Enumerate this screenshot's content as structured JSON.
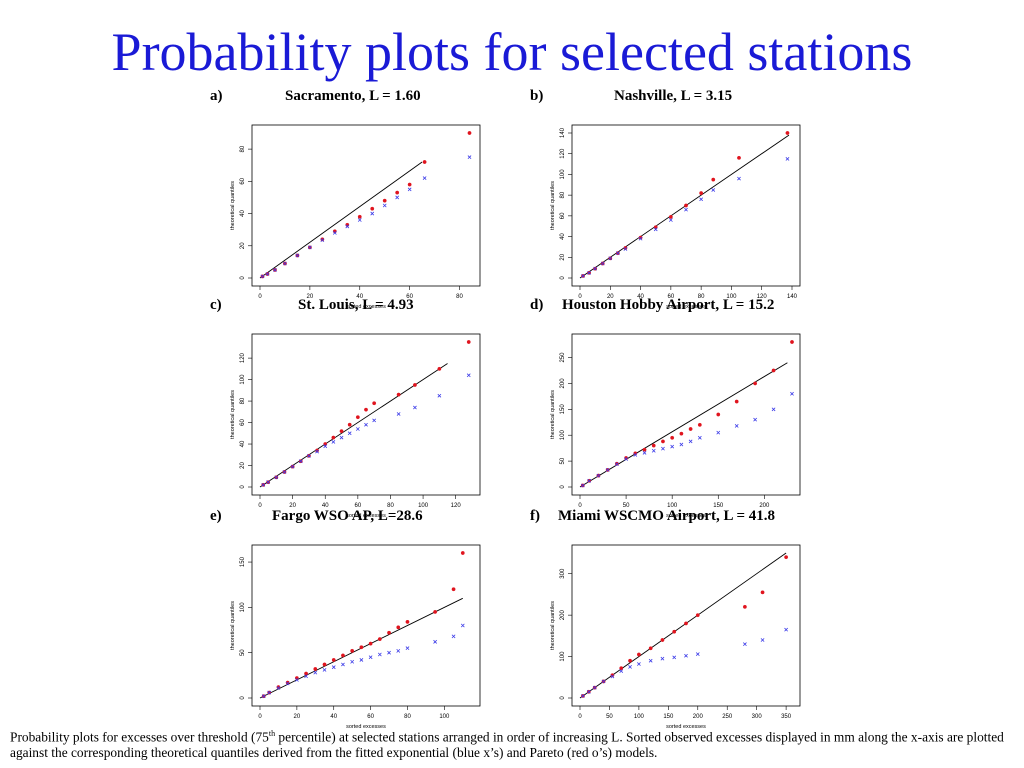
{
  "slide": {
    "title": "Probability plots for selected stations",
    "caption": {
      "part1": "Probability plots for excesses over threshold (75",
      "sup": "th",
      "part2": " percentile) at selected stations arranged in order of increasing L. Sorted observed excesses displayed in mm along the x-axis are plotted against the corresponding theoretical quantiles derived from the fitted exponential (blue x’s) and Pareto (red o’s) models."
    }
  },
  "colors": {
    "title": "#1a1ad6",
    "pareto": "#e0141e",
    "exponential": "#3a3ae8",
    "line": "#000000"
  },
  "chart_data": [
    {
      "letter": "a)",
      "title": "Sacramento, L = 1.60",
      "type": "scatter",
      "xlabel": "sorted excesses",
      "ylabel": "theoretical quantiles",
      "xlim": [
        0,
        85
      ],
      "ylim": [
        0,
        90
      ],
      "xticks": [
        0,
        20,
        40,
        60,
        80
      ],
      "yticks": [
        0,
        20,
        40,
        60,
        80
      ],
      "line_end": [
        65,
        72
      ],
      "series": [
        {
          "name": "Pareto",
          "marker": "o",
          "points": [
            [
              1,
              1
            ],
            [
              3,
              2.5
            ],
            [
              6,
              5
            ],
            [
              10,
              9
            ],
            [
              15,
              14
            ],
            [
              20,
              19
            ],
            [
              25,
              24
            ],
            [
              30,
              29
            ],
            [
              35,
              33
            ],
            [
              40,
              38
            ],
            [
              45,
              43
            ],
            [
              50,
              48
            ],
            [
              55,
              53
            ],
            [
              60,
              58
            ],
            [
              66,
              72
            ],
            [
              84,
              90
            ]
          ]
        },
        {
          "name": "Exponential",
          "marker": "x",
          "points": [
            [
              1,
              1
            ],
            [
              3,
              2.5
            ],
            [
              6,
              5
            ],
            [
              10,
              9
            ],
            [
              15,
              14
            ],
            [
              20,
              19
            ],
            [
              25,
              23.5
            ],
            [
              30,
              28
            ],
            [
              35,
              32
            ],
            [
              40,
              36
            ],
            [
              45,
              40
            ],
            [
              50,
              45
            ],
            [
              55,
              50
            ],
            [
              60,
              55
            ],
            [
              66,
              62
            ],
            [
              84,
              75
            ]
          ]
        }
      ]
    },
    {
      "letter": "b)",
      "title": "Nashville, L = 3.15",
      "type": "scatter",
      "xlabel": "sorted excesses",
      "ylabel": "theoretical quantiles",
      "xlim": [
        0,
        140
      ],
      "ylim": [
        0,
        140
      ],
      "xticks": [
        0,
        20,
        40,
        60,
        80,
        100,
        120,
        140
      ],
      "yticks": [
        0,
        20,
        40,
        60,
        80,
        100,
        120,
        140
      ],
      "line_end": [
        138,
        138
      ],
      "series": [
        {
          "name": "Pareto",
          "marker": "o",
          "points": [
            [
              2,
              2
            ],
            [
              6,
              5
            ],
            [
              10,
              9
            ],
            [
              15,
              14
            ],
            [
              20,
              19
            ],
            [
              25,
              24
            ],
            [
              30,
              29
            ],
            [
              40,
              39
            ],
            [
              50,
              49
            ],
            [
              60,
              59
            ],
            [
              70,
              70
            ],
            [
              80,
              82
            ],
            [
              88,
              95
            ],
            [
              105,
              116
            ],
            [
              137,
              140
            ]
          ]
        },
        {
          "name": "Exponential",
          "marker": "x",
          "points": [
            [
              2,
              2
            ],
            [
              6,
              5
            ],
            [
              10,
              9
            ],
            [
              15,
              14
            ],
            [
              20,
              19
            ],
            [
              25,
              24
            ],
            [
              30,
              28
            ],
            [
              40,
              38
            ],
            [
              50,
              47
            ],
            [
              60,
              56
            ],
            [
              70,
              66
            ],
            [
              80,
              76
            ],
            [
              88,
              85
            ],
            [
              105,
              96
            ],
            [
              137,
              115
            ]
          ]
        }
      ]
    },
    {
      "letter": "c)",
      "title": "St. Louis, L = 4.93",
      "type": "scatter",
      "xlabel": "sorted excesses",
      "ylabel": "theoretical quantiles",
      "xlim": [
        0,
        130
      ],
      "ylim": [
        0,
        135
      ],
      "xticks": [
        0,
        20,
        40,
        60,
        80,
        100,
        120
      ],
      "yticks": [
        0,
        20,
        40,
        60,
        80,
        100,
        120
      ],
      "line_end": [
        115,
        115
      ],
      "series": [
        {
          "name": "Pareto",
          "marker": "o",
          "points": [
            [
              2,
              2
            ],
            [
              5,
              4.5
            ],
            [
              10,
              9
            ],
            [
              15,
              14
            ],
            [
              20,
              19
            ],
            [
              25,
              24
            ],
            [
              30,
              29
            ],
            [
              35,
              34
            ],
            [
              40,
              40
            ],
            [
              45,
              46
            ],
            [
              50,
              52
            ],
            [
              55,
              58
            ],
            [
              60,
              65
            ],
            [
              65,
              72
            ],
            [
              70,
              78
            ],
            [
              85,
              86
            ],
            [
              95,
              95
            ],
            [
              110,
              110
            ],
            [
              128,
              135
            ]
          ]
        },
        {
          "name": "Exponential",
          "marker": "x",
          "points": [
            [
              2,
              2
            ],
            [
              5,
              4.5
            ],
            [
              10,
              9
            ],
            [
              15,
              14
            ],
            [
              20,
              19
            ],
            [
              25,
              24
            ],
            [
              30,
              29
            ],
            [
              35,
              33
            ],
            [
              40,
              38
            ],
            [
              45,
              42
            ],
            [
              50,
              46
            ],
            [
              55,
              50
            ],
            [
              60,
              54
            ],
            [
              65,
              58
            ],
            [
              70,
              62
            ],
            [
              85,
              68
            ],
            [
              95,
              74
            ],
            [
              110,
              85
            ],
            [
              128,
              104
            ]
          ]
        }
      ]
    },
    {
      "letter": "d)",
      "title": "Houston Hobby Airport, L = 15.2",
      "type": "scatter",
      "xlabel": "sorted excesses",
      "ylabel": "theoretical quantiles",
      "xlim": [
        0,
        230
      ],
      "ylim": [
        0,
        280
      ],
      "xticks": [
        0,
        50,
        100,
        150,
        200
      ],
      "yticks": [
        0,
        50,
        100,
        150,
        200,
        250
      ],
      "line_end": [
        225,
        240
      ],
      "series": [
        {
          "name": "Pareto",
          "marker": "o",
          "points": [
            [
              3,
              3
            ],
            [
              10,
              12
            ],
            [
              20,
              22
            ],
            [
              30,
              33
            ],
            [
              40,
              45
            ],
            [
              50,
              56
            ],
            [
              60,
              65
            ],
            [
              70,
              72
            ],
            [
              80,
              80
            ],
            [
              90,
              88
            ],
            [
              100,
              95
            ],
            [
              110,
              103
            ],
            [
              120,
              112
            ],
            [
              130,
              120
            ],
            [
              150,
              140
            ],
            [
              170,
              165
            ],
            [
              190,
              200
            ],
            [
              210,
              225
            ],
            [
              230,
              280
            ]
          ]
        },
        {
          "name": "Exponential",
          "marker": "x",
          "points": [
            [
              3,
              3
            ],
            [
              10,
              12
            ],
            [
              20,
              22
            ],
            [
              30,
              33
            ],
            [
              40,
              44
            ],
            [
              50,
              54
            ],
            [
              60,
              62
            ],
            [
              70,
              66
            ],
            [
              80,
              70
            ],
            [
              90,
              74
            ],
            [
              100,
              78
            ],
            [
              110,
              82
            ],
            [
              120,
              88
            ],
            [
              130,
              95
            ],
            [
              150,
              105
            ],
            [
              170,
              118
            ],
            [
              190,
              130
            ],
            [
              210,
              150
            ],
            [
              230,
              180
            ]
          ]
        }
      ]
    },
    {
      "letter": "e)",
      "title": "Fargo WSO AP, L=28.6",
      "type": "scatter",
      "xlabel": "sorted excesses",
      "ylabel": "theoretical quantiles",
      "xlim": [
        0,
        115
      ],
      "ylim": [
        0,
        160
      ],
      "xticks": [
        0,
        20,
        40,
        60,
        80,
        100
      ],
      "yticks": [
        0,
        50,
        100,
        150
      ],
      "line_end": [
        110,
        110
      ],
      "series": [
        {
          "name": "Pareto",
          "marker": "o",
          "points": [
            [
              2,
              2
            ],
            [
              5,
              6
            ],
            [
              10,
              12
            ],
            [
              15,
              17
            ],
            [
              20,
              22
            ],
            [
              25,
              27
            ],
            [
              30,
              32
            ],
            [
              35,
              37
            ],
            [
              40,
              42
            ],
            [
              45,
              47
            ],
            [
              50,
              52
            ],
            [
              55,
              56
            ],
            [
              60,
              60
            ],
            [
              65,
              65
            ],
            [
              70,
              72
            ],
            [
              75,
              78
            ],
            [
              80,
              84
            ],
            [
              95,
              95
            ],
            [
              105,
              120
            ],
            [
              110,
              160
            ]
          ]
        },
        {
          "name": "Exponential",
          "marker": "x",
          "points": [
            [
              2,
              2
            ],
            [
              5,
              6
            ],
            [
              10,
              11
            ],
            [
              15,
              16
            ],
            [
              20,
              20
            ],
            [
              25,
              24
            ],
            [
              30,
              28
            ],
            [
              35,
              31
            ],
            [
              40,
              34
            ],
            [
              45,
              37
            ],
            [
              50,
              40
            ],
            [
              55,
              42
            ],
            [
              60,
              45
            ],
            [
              65,
              48
            ],
            [
              70,
              50
            ],
            [
              75,
              52
            ],
            [
              80,
              55
            ],
            [
              95,
              62
            ],
            [
              105,
              68
            ],
            [
              110,
              80
            ]
          ]
        }
      ]
    },
    {
      "letter": "f)",
      "title": "Miami WSCMO Airport, L = 41.8",
      "type": "scatter",
      "xlabel": "sorted excesses",
      "ylabel": "theoretical quantiles",
      "xlim": [
        0,
        360
      ],
      "ylim": [
        0,
        350
      ],
      "xticks": [
        0,
        50,
        100,
        150,
        200,
        250,
        300,
        350
      ],
      "yticks": [
        0,
        100,
        200,
        300
      ],
      "line_end": [
        350,
        350
      ],
      "series": [
        {
          "name": "Pareto",
          "marker": "o",
          "points": [
            [
              5,
              5
            ],
            [
              15,
              15
            ],
            [
              25,
              25
            ],
            [
              40,
              40
            ],
            [
              55,
              55
            ],
            [
              70,
              72
            ],
            [
              85,
              90
            ],
            [
              100,
              105
            ],
            [
              120,
              120
            ],
            [
              140,
              140
            ],
            [
              160,
              160
            ],
            [
              180,
              180
            ],
            [
              200,
              200
            ],
            [
              280,
              220
            ],
            [
              310,
              255
            ],
            [
              350,
              340
            ]
          ]
        },
        {
          "name": "Exponential",
          "marker": "x",
          "points": [
            [
              5,
              5
            ],
            [
              15,
              15
            ],
            [
              25,
              25
            ],
            [
              40,
              40
            ],
            [
              55,
              52
            ],
            [
              70,
              65
            ],
            [
              85,
              75
            ],
            [
              100,
              82
            ],
            [
              120,
              90
            ],
            [
              140,
              95
            ],
            [
              160,
              98
            ],
            [
              180,
              102
            ],
            [
              200,
              106
            ],
            [
              280,
              130
            ],
            [
              310,
              140
            ],
            [
              350,
              165
            ]
          ]
        }
      ]
    }
  ]
}
